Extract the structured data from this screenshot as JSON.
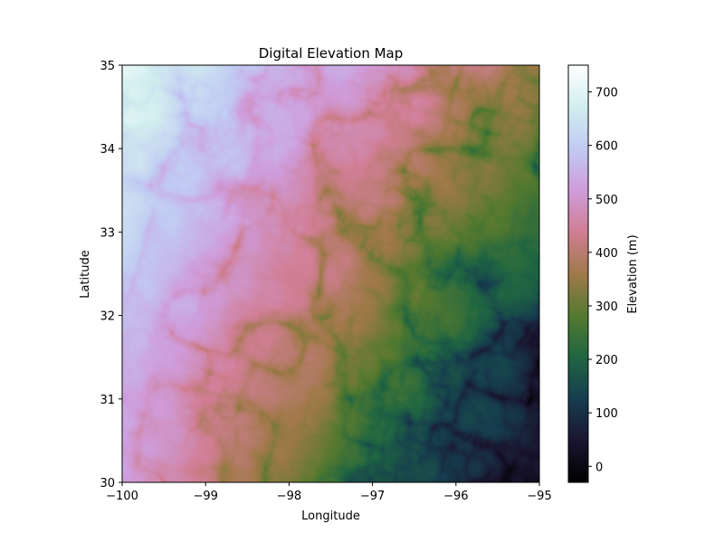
{
  "chart_data": {
    "type": "heatmap",
    "title": "Digital Elevation Map",
    "xlabel": "Longitude",
    "ylabel": "Latitude",
    "xlim": [
      -100,
      -95
    ],
    "ylim": [
      30,
      35
    ],
    "xticks": [
      -100,
      -99,
      -98,
      -97,
      -96,
      -95
    ],
    "yticks": [
      30,
      31,
      32,
      33,
      34,
      35
    ],
    "xtick_labels": [
      "−100",
      "−99",
      "−98",
      "−97",
      "−96",
      "−95"
    ],
    "ytick_labels": [
      "30",
      "31",
      "32",
      "33",
      "34",
      "35"
    ],
    "colormap": "cubehelix",
    "colorbar": {
      "label": "Elevation (m)",
      "range": [
        -30,
        750
      ],
      "ticks": [
        0,
        100,
        200,
        300,
        400,
        500,
        600,
        700
      ],
      "tick_labels": [
        "0",
        "100",
        "200",
        "300",
        "400",
        "500",
        "600",
        "700"
      ]
    },
    "elevation_trend": "high (~600-750 m) in the west, descending to near 0 m in the southeast, incised by dendritic river valleys draining southeast"
  }
}
